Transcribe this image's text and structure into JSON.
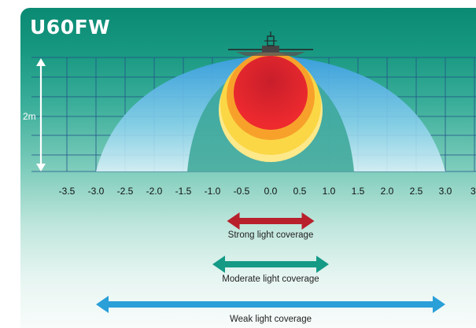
{
  "title": "U60FW",
  "height_label": "2m",
  "x_ticks": [
    "-3.5",
    "-3.0",
    "-2.5",
    "-2.0",
    "-1.5",
    "-1.0",
    "-0.5",
    "0.0",
    "0.5",
    "1.0",
    "1.5",
    "2.0",
    "2.5",
    "3.0",
    "3."
  ],
  "ranges": [
    {
      "label": "Strong light coverage",
      "from": -0.75,
      "to": 0.75,
      "color": "#b8202c"
    },
    {
      "label": "Moderate light coverage",
      "from": -1.0,
      "to": 1.0,
      "color": "#159a86"
    },
    {
      "label": "Weak light coverage",
      "from": -3.0,
      "to": 3.0,
      "color": "#2a9fd8"
    }
  ],
  "colors": {
    "strong": "#e3262f",
    "moderate": "#f7a12b",
    "weak": "#fbe36a",
    "outer": "#6cc4ea"
  }
}
